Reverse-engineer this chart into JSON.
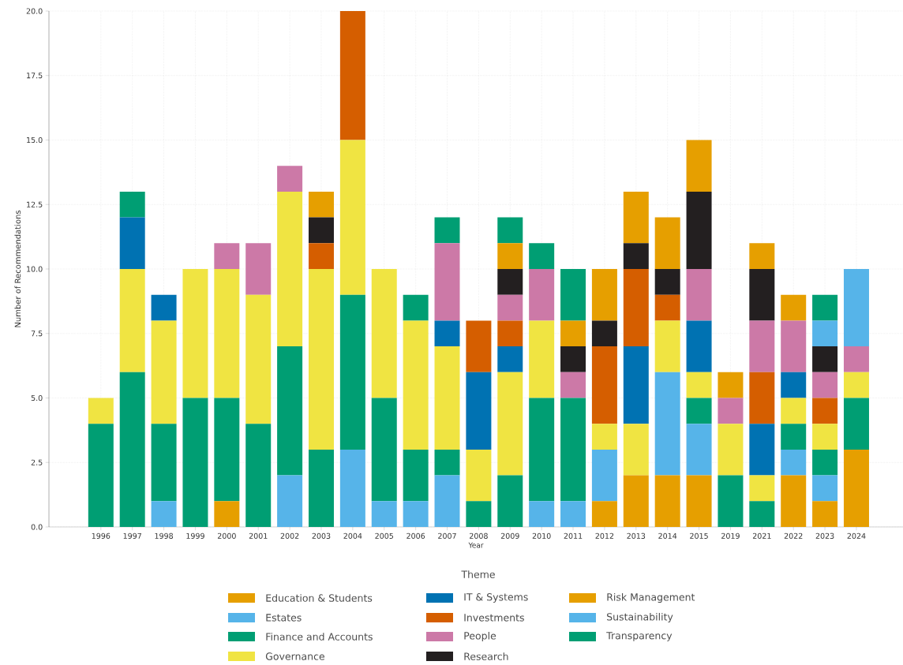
{
  "chart_data": {
    "type": "bar",
    "stacked": true,
    "xlabel": "Year",
    "ylabel": "Number of Recommendations",
    "legend_title": "Theme",
    "legend": "bottom",
    "grid": true,
    "categories": [
      "1996",
      "1997",
      "1998",
      "1999",
      "2000",
      "2001",
      "2002",
      "2003",
      "2004",
      "2005",
      "2006",
      "2007",
      "2008",
      "2009",
      "2010",
      "2011",
      "2012",
      "2013",
      "2014",
      "2015",
      "2019",
      "2021",
      "2022",
      "2023",
      "2024"
    ],
    "ylim": [
      0,
      20
    ],
    "yticks": [
      {
        "value": 0,
        "label": "0.0"
      },
      {
        "value": 2.5,
        "label": "2.5"
      },
      {
        "value": 5,
        "label": "5.0"
      },
      {
        "value": 7.5,
        "label": "7.5"
      },
      {
        "value": 10,
        "label": "10.0"
      },
      {
        "value": 12.5,
        "label": "12.5"
      },
      {
        "value": 15,
        "label": "15.0"
      },
      {
        "value": 17.5,
        "label": "17.5"
      },
      {
        "value": 20,
        "label": "20.0"
      }
    ],
    "series": [
      {
        "name": "Education & Students",
        "color": "#e69f00",
        "values": [
          0,
          0,
          0,
          0,
          1,
          0,
          0,
          0,
          0,
          0,
          0,
          0,
          0,
          0,
          0,
          0,
          1,
          2,
          2,
          2,
          0,
          0,
          2,
          1,
          3
        ]
      },
      {
        "name": "Estates",
        "color": "#56b4e9",
        "values": [
          0,
          0,
          1,
          0,
          0,
          0,
          2,
          0,
          3,
          1,
          1,
          2,
          0,
          0,
          1,
          1,
          2,
          0,
          4,
          2,
          0,
          0,
          1,
          1,
          0
        ]
      },
      {
        "name": "Finance and Accounts",
        "color": "#009e73",
        "values": [
          4,
          6,
          3,
          5,
          4,
          4,
          5,
          3,
          6,
          4,
          2,
          1,
          1,
          2,
          4,
          4,
          0,
          0,
          0,
          1,
          2,
          1,
          1,
          1,
          2
        ]
      },
      {
        "name": "Governance",
        "color": "#f0e442",
        "values": [
          1,
          4,
          4,
          5,
          5,
          5,
          6,
          7,
          6,
          5,
          5,
          4,
          2,
          4,
          3,
          0,
          1,
          2,
          2,
          1,
          2,
          1,
          1,
          1,
          1
        ]
      },
      {
        "name": "IT & Systems",
        "color": "#0072b2",
        "values": [
          0,
          2,
          1,
          0,
          0,
          0,
          0,
          0,
          0,
          0,
          0,
          1,
          3,
          1,
          0,
          0,
          0,
          3,
          0,
          2,
          0,
          2,
          1,
          0,
          0
        ]
      },
      {
        "name": "Investments",
        "color": "#d55e00",
        "values": [
          0,
          0,
          0,
          0,
          0,
          0,
          0,
          1,
          5,
          0,
          0,
          0,
          2,
          1,
          0,
          0,
          3,
          3,
          1,
          0,
          0,
          2,
          0,
          1,
          0
        ]
      },
      {
        "name": "People",
        "color": "#cc79a7",
        "values": [
          0,
          0,
          0,
          0,
          1,
          2,
          1,
          0,
          0,
          0,
          0,
          3,
          0,
          1,
          2,
          1,
          0,
          0,
          0,
          2,
          1,
          2,
          2,
          1,
          1
        ]
      },
      {
        "name": "Research",
        "color": "#231f20",
        "values": [
          0,
          0,
          0,
          0,
          0,
          0,
          0,
          1,
          0,
          0,
          0,
          0,
          0,
          1,
          0,
          1,
          1,
          1,
          1,
          3,
          0,
          2,
          0,
          1,
          0
        ]
      },
      {
        "name": "Risk Management",
        "color": "#e69f00",
        "values": [
          0,
          0,
          0,
          0,
          0,
          0,
          0,
          1,
          0,
          0,
          0,
          0,
          0,
          1,
          0,
          1,
          2,
          2,
          2,
          2,
          1,
          1,
          1,
          0,
          0
        ]
      },
      {
        "name": "Sustainability",
        "color": "#56b4e9",
        "values": [
          0,
          0,
          0,
          0,
          0,
          0,
          0,
          0,
          0,
          0,
          0,
          0,
          0,
          0,
          0,
          0,
          0,
          0,
          0,
          0,
          0,
          0,
          0,
          1,
          3
        ]
      },
      {
        "name": "Transparency",
        "color": "#009e73",
        "values": [
          0,
          1,
          0,
          0,
          0,
          0,
          0,
          0,
          0,
          0,
          1,
          1,
          0,
          1,
          1,
          2,
          0,
          0,
          0,
          0,
          0,
          0,
          0,
          1,
          0
        ]
      }
    ]
  }
}
